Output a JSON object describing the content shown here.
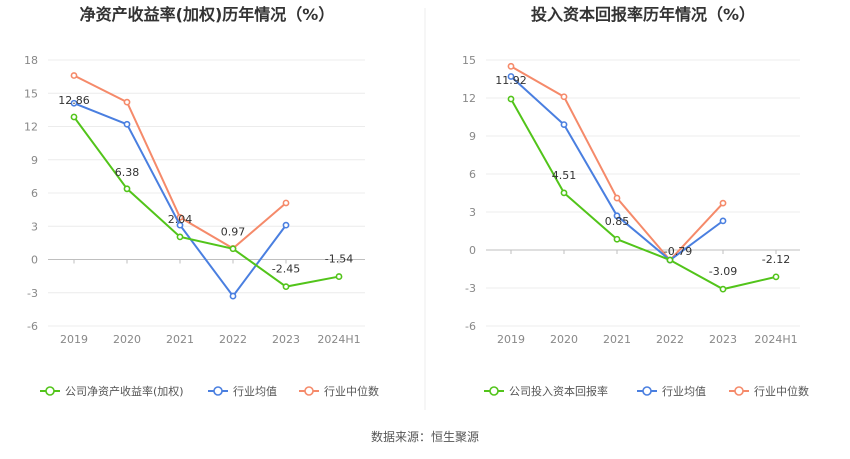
{
  "source_label": "数据来源：恒生聚源",
  "chart_data": [
    {
      "type": "line",
      "title": "净资产收益率(加权)历年情况（%）",
      "categories": [
        "2019",
        "2020",
        "2021",
        "2022",
        "2023",
        "2024H1"
      ],
      "yticks": [
        18,
        15,
        12,
        9,
        6,
        3,
        0,
        -3,
        -6
      ],
      "ylim": [
        -6,
        18
      ],
      "grid": true,
      "legend_position": "bottom",
      "series": [
        {
          "name": "公司净资产收益率(加权)",
          "color": "#52c41a",
          "values": [
            12.86,
            6.38,
            2.04,
            0.97,
            -2.45,
            -1.54
          ],
          "labels": [
            "12.86",
            "6.38",
            "2.04",
            "0.97",
            "-2.45",
            "-1.54"
          ]
        },
        {
          "name": "行业均值",
          "color": "#4a7fe0",
          "values": [
            14.1,
            12.2,
            3.1,
            -3.3,
            3.1,
            null
          ]
        },
        {
          "name": "行业中位数",
          "color": "#f58a6a",
          "values": [
            16.6,
            14.2,
            3.8,
            1.0,
            5.1,
            null
          ]
        }
      ]
    },
    {
      "type": "line",
      "title": "投入资本回报率历年情况（%）",
      "categories": [
        "2019",
        "2020",
        "2021",
        "2022",
        "2023",
        "2024H1"
      ],
      "yticks": [
        15,
        12,
        9,
        6,
        3,
        0,
        -3,
        -6
      ],
      "ylim": [
        -6,
        15
      ],
      "grid": true,
      "legend_position": "bottom",
      "series": [
        {
          "name": "公司投入资本回报率",
          "color": "#52c41a",
          "values": [
            11.92,
            4.51,
            0.85,
            -0.79,
            -3.09,
            -2.12
          ],
          "labels": [
            "11.92",
            "4.51",
            "0.85",
            "-0.79",
            "-3.09",
            "-2.12"
          ]
        },
        {
          "name": "行业均值",
          "color": "#4a7fe0",
          "values": [
            13.7,
            9.9,
            2.7,
            -0.8,
            2.3,
            null
          ]
        },
        {
          "name": "行业中位数",
          "color": "#f58a6a",
          "values": [
            14.5,
            12.1,
            4.1,
            -0.8,
            3.7,
            null
          ]
        }
      ]
    }
  ]
}
